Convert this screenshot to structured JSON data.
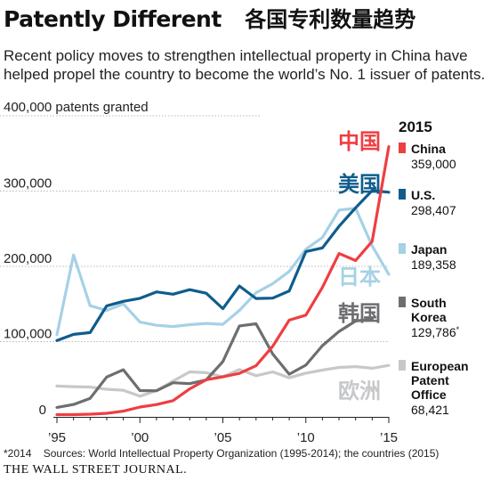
{
  "header": {
    "title": "Patently Different",
    "title_cn": "各国专利数量趋势",
    "subtitle": "Recent policy moves to strengthen intellectual property in China have helped propel the country to become the world’s No. 1 issuer of patents."
  },
  "footer": {
    "note_mark": "*2014",
    "sources": "Sources: World Intellectual Property Organization (1995-2014); the countries (2015)",
    "brand": "THE WALL STREET JOURNAL."
  },
  "chart_data": {
    "type": "line",
    "y_unit_label": "400,000 patents granted",
    "ylim": [
      0,
      400000
    ],
    "xlim": [
      1995,
      2015
    ],
    "y_ticks": [
      {
        "value": 100000,
        "label": "100,000"
      },
      {
        "value": 200000,
        "label": "200,000"
      },
      {
        "value": 300000,
        "label": "300,000"
      },
      {
        "value": 0,
        "label": "0"
      }
    ],
    "x_ticks": [
      {
        "value": 1995,
        "label": "’95"
      },
      {
        "value": 2000,
        "label": "’00"
      },
      {
        "value": 2005,
        "label": "’05"
      },
      {
        "value": 2010,
        "label": "’10"
      },
      {
        "value": 2015,
        "label": "’15"
      }
    ],
    "legend_year": "2015",
    "grid": "horizontal",
    "series": [
      {
        "key": "china",
        "color": "#ef3e42",
        "label_cn": "中国",
        "legend_lines": [
          "China"
        ],
        "value_label": "359,000",
        "points": [
          [
            1995,
            3000
          ],
          [
            1996,
            3000
          ],
          [
            1997,
            3500
          ],
          [
            1998,
            4700
          ],
          [
            1999,
            7600
          ],
          [
            2000,
            13000
          ],
          [
            2001,
            16300
          ],
          [
            2002,
            21500
          ],
          [
            2003,
            37200
          ],
          [
            2004,
            49400
          ],
          [
            2005,
            53300
          ],
          [
            2006,
            57800
          ],
          [
            2007,
            67900
          ],
          [
            2008,
            93700
          ],
          [
            2009,
            128500
          ],
          [
            2010,
            135100
          ],
          [
            2011,
            172100
          ],
          [
            2012,
            217100
          ],
          [
            2013,
            207700
          ],
          [
            2014,
            233200
          ],
          [
            2015,
            359000
          ]
        ]
      },
      {
        "key": "us",
        "color": "#0f5d8c",
        "label_cn": "美国",
        "legend_lines": [
          "U.S."
        ],
        "value_label": "298,407",
        "points": [
          [
            1995,
            101400
          ],
          [
            1996,
            109600
          ],
          [
            1997,
            111900
          ],
          [
            1998,
            147500
          ],
          [
            1999,
            153500
          ],
          [
            2000,
            157500
          ],
          [
            2001,
            166000
          ],
          [
            2002,
            163000
          ],
          [
            2003,
            169000
          ],
          [
            2004,
            164300
          ],
          [
            2005,
            143800
          ],
          [
            2006,
            173800
          ],
          [
            2007,
            157300
          ],
          [
            2008,
            157800
          ],
          [
            2009,
            167300
          ],
          [
            2010,
            219600
          ],
          [
            2011,
            224500
          ],
          [
            2012,
            253200
          ],
          [
            2013,
            277800
          ],
          [
            2014,
            300700
          ],
          [
            2015,
            298407
          ]
        ]
      },
      {
        "key": "japan",
        "color": "#a6d1e6",
        "label_cn": "日本",
        "legend_lines": [
          "Japan"
        ],
        "value_label": "189,358",
        "points": [
          [
            1995,
            109100
          ],
          [
            1996,
            215100
          ],
          [
            1997,
            147700
          ],
          [
            1998,
            141400
          ],
          [
            1999,
            150100
          ],
          [
            2000,
            125900
          ],
          [
            2001,
            121700
          ],
          [
            2002,
            120000
          ],
          [
            2003,
            122500
          ],
          [
            2004,
            124200
          ],
          [
            2005,
            122900
          ],
          [
            2006,
            141400
          ],
          [
            2007,
            164900
          ],
          [
            2008,
            176900
          ],
          [
            2009,
            193300
          ],
          [
            2010,
            222700
          ],
          [
            2011,
            238300
          ],
          [
            2012,
            274800
          ],
          [
            2013,
            277100
          ],
          [
            2014,
            227100
          ],
          [
            2015,
            189358
          ]
        ]
      },
      {
        "key": "korea",
        "color": "#6d6e70",
        "label_cn": "韩国",
        "legend_lines": [
          "South",
          "Korea"
        ],
        "value_label": "129,786",
        "value_note": "*",
        "points": [
          [
            1995,
            12500
          ],
          [
            1996,
            16500
          ],
          [
            1997,
            24600
          ],
          [
            1998,
            52900
          ],
          [
            1999,
            62600
          ],
          [
            2000,
            34900
          ],
          [
            2001,
            34700
          ],
          [
            2002,
            45300
          ],
          [
            2003,
            44200
          ],
          [
            2004,
            49100
          ],
          [
            2005,
            73500
          ],
          [
            2006,
            120800
          ],
          [
            2007,
            123700
          ],
          [
            2008,
            83500
          ],
          [
            2009,
            56700
          ],
          [
            2010,
            68800
          ],
          [
            2011,
            94700
          ],
          [
            2012,
            113500
          ],
          [
            2013,
            127300
          ],
          [
            2014,
            129786
          ]
        ]
      },
      {
        "key": "epo",
        "color": "#c7c8ca",
        "label_cn": "欧洲",
        "legend_lines": [
          "European",
          "Patent",
          "Office"
        ],
        "value_label": "68,421",
        "points": [
          [
            1995,
            41000
          ],
          [
            1996,
            40100
          ],
          [
            1997,
            39600
          ],
          [
            1998,
            36700
          ],
          [
            1999,
            35400
          ],
          [
            2000,
            27500
          ],
          [
            2001,
            34900
          ],
          [
            2002,
            47400
          ],
          [
            2003,
            59800
          ],
          [
            2004,
            58700
          ],
          [
            2005,
            53300
          ],
          [
            2006,
            62800
          ],
          [
            2007,
            54700
          ],
          [
            2008,
            59800
          ],
          [
            2009,
            51900
          ],
          [
            2010,
            58100
          ],
          [
            2011,
            62100
          ],
          [
            2012,
            65700
          ],
          [
            2013,
            66700
          ],
          [
            2014,
            64600
          ],
          [
            2015,
            68421
          ]
        ]
      }
    ]
  }
}
